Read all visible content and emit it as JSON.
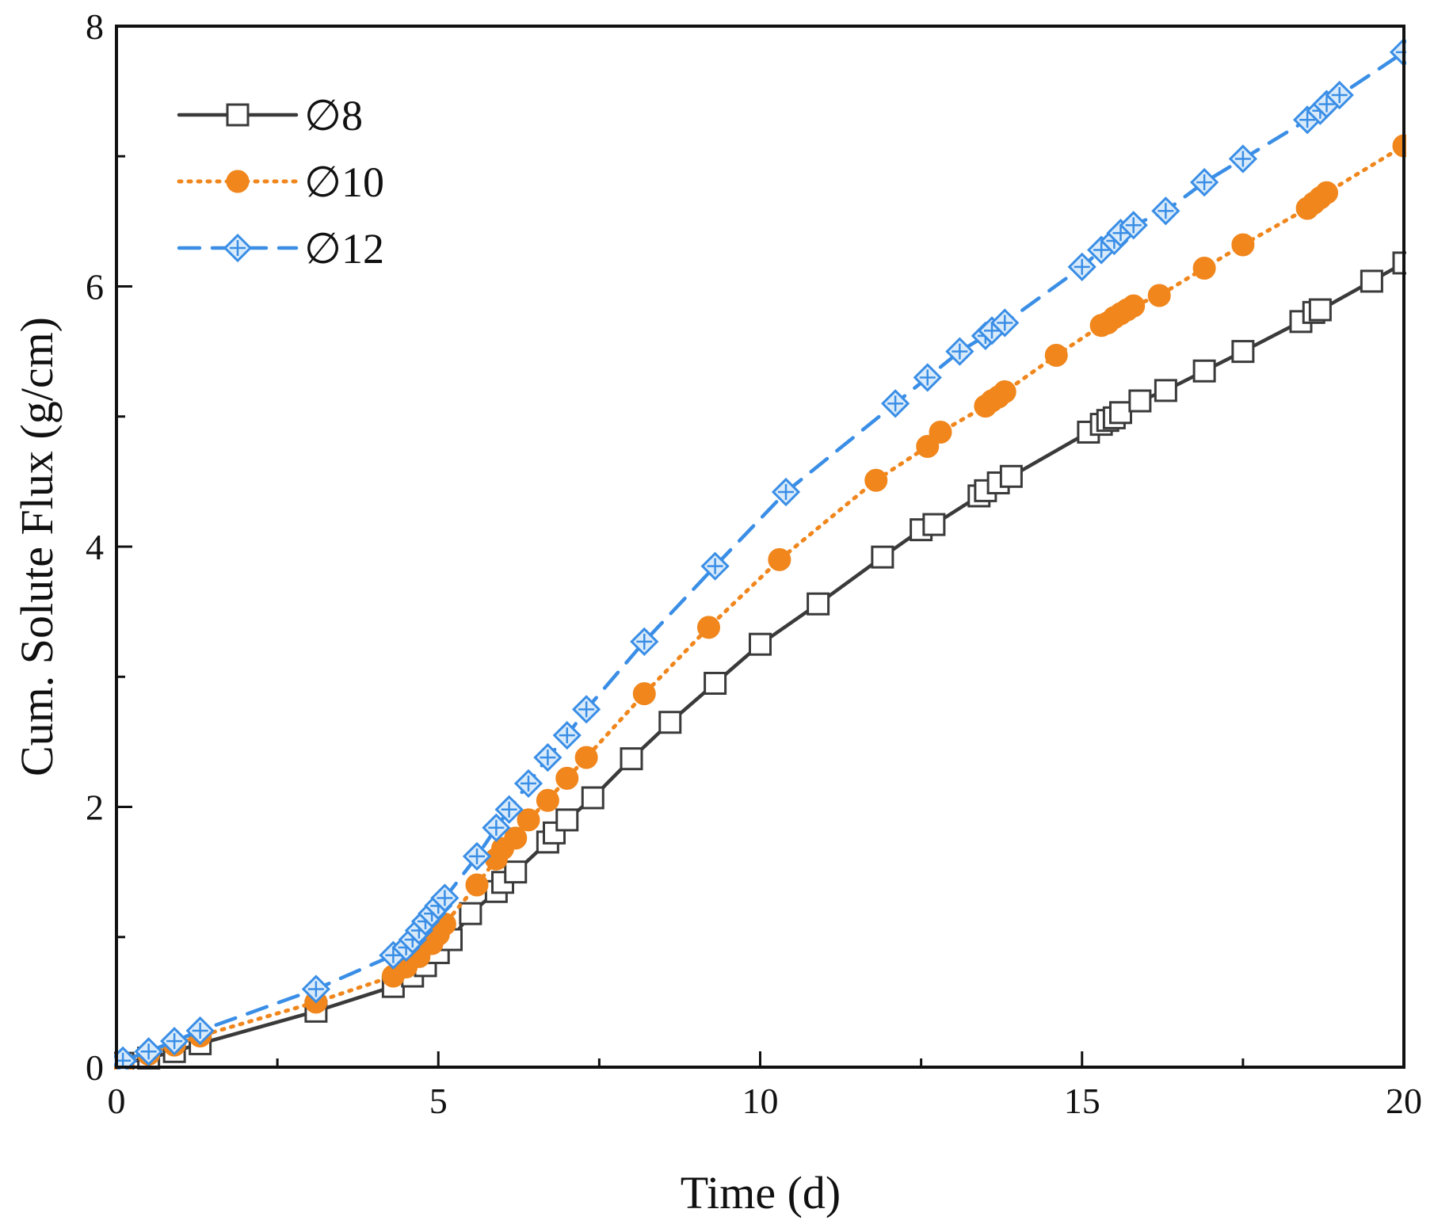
{
  "chart_data": {
    "type": "line",
    "title": "",
    "xlabel": "Time (d)",
    "ylabel": "Cum. Solute Flux (g/cm)",
    "xlim": [
      0,
      20
    ],
    "ylim": [
      0,
      8
    ],
    "x_ticks": [
      0,
      5,
      10,
      15,
      20
    ],
    "x_tick_labels": [
      "0",
      "5",
      "10",
      "15",
      "20"
    ],
    "x_minor_ticks": [
      2.5,
      7.5,
      12.5,
      17.5
    ],
    "y_ticks": [
      0,
      2,
      4,
      6,
      8
    ],
    "y_tick_labels": [
      "0",
      "2",
      "4",
      "6",
      "8"
    ],
    "y_minor_ticks": [
      1,
      3,
      5,
      7
    ],
    "grid": false,
    "legend_position": "top-left",
    "series": [
      {
        "name": "∅8",
        "color": "#3a3a3a",
        "line_style": "solid",
        "marker": "open-square",
        "x": [
          0.1,
          0.5,
          0.9,
          1.3,
          3.1,
          4.3,
          4.6,
          4.8,
          5.0,
          5.2,
          5.5,
          5.9,
          6.0,
          6.2,
          6.7,
          6.8,
          7.0,
          7.4,
          8.0,
          8.6,
          9.3,
          10.0,
          10.9,
          11.9,
          12.5,
          12.7,
          13.4,
          13.5,
          13.7,
          13.9,
          15.1,
          15.3,
          15.4,
          15.5,
          15.6,
          15.9,
          16.3,
          16.9,
          17.5,
          18.4,
          18.6,
          18.7,
          19.5,
          20.0
        ],
        "values": [
          0.03,
          0.07,
          0.12,
          0.18,
          0.43,
          0.62,
          0.7,
          0.78,
          0.88,
          0.98,
          1.18,
          1.35,
          1.42,
          1.5,
          1.73,
          1.8,
          1.9,
          2.07,
          2.37,
          2.65,
          2.95,
          3.25,
          3.56,
          3.92,
          4.13,
          4.17,
          4.39,
          4.43,
          4.49,
          4.54,
          4.88,
          4.94,
          4.97,
          4.99,
          5.03,
          5.12,
          5.2,
          5.35,
          5.5,
          5.73,
          5.8,
          5.82,
          6.04,
          6.18
        ]
      },
      {
        "name": "∅10",
        "color": "#f0861c",
        "line_style": "dotted",
        "marker": "filled-circle",
        "x": [
          0.1,
          0.5,
          0.9,
          1.3,
          3.1,
          4.3,
          4.5,
          4.7,
          4.9,
          5.0,
          5.1,
          5.6,
          5.9,
          6.0,
          6.2,
          6.4,
          6.7,
          7.0,
          7.3,
          8.2,
          9.2,
          10.3,
          11.8,
          12.6,
          12.8,
          13.5,
          13.6,
          13.7,
          13.8,
          14.6,
          15.3,
          15.4,
          15.5,
          15.6,
          15.7,
          15.8,
          16.2,
          16.9,
          17.5,
          18.5,
          18.6,
          18.7,
          18.8,
          20.0
        ],
        "values": [
          0.03,
          0.1,
          0.17,
          0.24,
          0.5,
          0.7,
          0.77,
          0.85,
          0.95,
          1.02,
          1.1,
          1.4,
          1.6,
          1.68,
          1.76,
          1.9,
          2.05,
          2.22,
          2.38,
          2.87,
          3.38,
          3.9,
          4.51,
          4.77,
          4.88,
          5.08,
          5.12,
          5.15,
          5.19,
          5.47,
          5.7,
          5.72,
          5.76,
          5.79,
          5.82,
          5.85,
          5.93,
          6.14,
          6.32,
          6.6,
          6.64,
          6.68,
          6.72,
          7.08
        ]
      },
      {
        "name": "∅12",
        "color": "#3a8ee6",
        "line_style": "dashed",
        "marker": "crossed-diamond",
        "x": [
          0.1,
          0.5,
          0.9,
          1.3,
          3.1,
          4.3,
          4.5,
          4.6,
          4.7,
          4.8,
          4.9,
          5.0,
          5.1,
          5.6,
          5.9,
          6.1,
          6.4,
          6.7,
          7.0,
          7.3,
          8.2,
          9.3,
          10.4,
          12.1,
          12.6,
          13.1,
          13.5,
          13.6,
          13.8,
          15.0,
          15.3,
          15.5,
          15.6,
          15.8,
          16.3,
          16.9,
          17.5,
          18.5,
          18.7,
          18.8,
          19.0,
          20.0
        ],
        "values": [
          0.05,
          0.12,
          0.2,
          0.28,
          0.6,
          0.86,
          0.92,
          0.98,
          1.05,
          1.12,
          1.18,
          1.24,
          1.3,
          1.62,
          1.84,
          1.98,
          2.18,
          2.38,
          2.55,
          2.75,
          3.27,
          3.85,
          4.42,
          5.1,
          5.3,
          5.5,
          5.62,
          5.66,
          5.72,
          6.15,
          6.28,
          6.35,
          6.41,
          6.47,
          6.58,
          6.8,
          6.98,
          7.28,
          7.35,
          7.4,
          7.47,
          7.8
        ]
      }
    ]
  }
}
